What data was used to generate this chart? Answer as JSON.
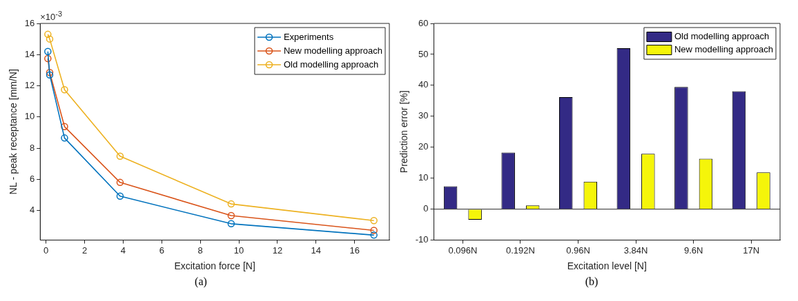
{
  "chart_data": [
    {
      "type": "line",
      "xlabel": "Excitation force [N]",
      "ylabel": "NL - peak receptance [mm/N]",
      "x": [
        0.096,
        0.192,
        0.96,
        3.84,
        9.6,
        17
      ],
      "series": [
        {
          "name": "Experiments",
          "color": "#0072bd",
          "values": [
            14.2,
            12.7,
            8.65,
            4.92,
            3.15,
            2.42
          ]
        },
        {
          "name": "New modelling approach",
          "color": "#d95319",
          "values": [
            13.75,
            12.85,
            9.38,
            5.8,
            3.67,
            2.72
          ]
        },
        {
          "name": "Old modelling approach",
          "color": "#edb120",
          "values": [
            15.3,
            15.0,
            11.75,
            7.48,
            4.42,
            3.35
          ]
        }
      ],
      "xlim": [
        -0.3,
        17.8
      ],
      "xticks": [
        0,
        2,
        4,
        6,
        8,
        10,
        12,
        14,
        16
      ],
      "ylim": [
        2.1,
        16
      ],
      "yticks": [
        4,
        6,
        8,
        10,
        12,
        14,
        16
      ],
      "marker": "circle",
      "legend": "top right",
      "annotations": [
        "×10$^{-3}$",
        "(a)"
      ]
    },
    {
      "type": "bar",
      "xlabel": "Excitation level [N]",
      "ylabel": "Prediction error [%]",
      "categories": [
        "0.096N",
        "0.192N",
        "0.96N",
        "3.84N",
        "9.6N",
        "17N"
      ],
      "series": [
        {
          "name": "Old modelling approach",
          "color": "#332a85",
          "values": [
            7.4,
            18.3,
            36.2,
            52,
            39.5,
            38.1
          ]
        },
        {
          "name": "New modelling approach",
          "color": "#f5f50a",
          "values": [
            -3.4,
            1.2,
            8.9,
            17.9,
            16.3,
            11.9
          ]
        }
      ],
      "ylim": [
        -10,
        60
      ],
      "yticks": [
        -10,
        0,
        10,
        20,
        30,
        40,
        50,
        60
      ],
      "legend": "top right",
      "annotations": [
        "(b)"
      ]
    }
  ]
}
